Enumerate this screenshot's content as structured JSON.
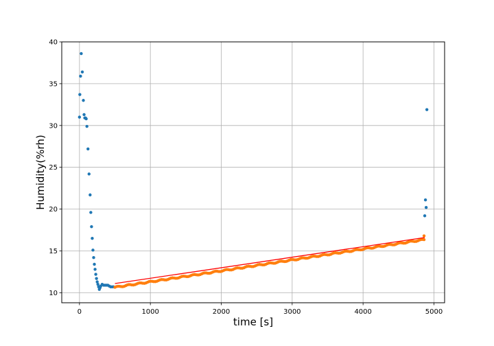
{
  "chart_data": {
    "type": "scatter",
    "title": "",
    "xlabel": "time [s]",
    "ylabel": "Humidity(%rh)",
    "xlim": [
      -250,
      5150
    ],
    "ylim": [
      8.8,
      40
    ],
    "xticks": [
      0,
      1000,
      2000,
      3000,
      4000,
      5000
    ],
    "xtick_labels": [
      "0",
      "1000",
      "2000",
      "3000",
      "4000",
      "5000"
    ],
    "yticks": [
      10,
      15,
      20,
      25,
      30,
      35,
      40
    ],
    "ytick_labels": [
      "10",
      "15",
      "20",
      "25",
      "30",
      "35",
      "40"
    ],
    "grid": true,
    "legend": "none",
    "series": [
      {
        "color": "#1f77b4",
        "marker": "dot",
        "points": [
          [
            0,
            31.0
          ],
          [
            5,
            33.7
          ],
          [
            15,
            35.9
          ],
          [
            25,
            38.6
          ],
          [
            40,
            36.4
          ],
          [
            55,
            33.0
          ],
          [
            65,
            31.3
          ],
          [
            75,
            30.9
          ],
          [
            85,
            30.9
          ],
          [
            95,
            30.8
          ],
          [
            105,
            29.9
          ],
          [
            120,
            27.2
          ],
          [
            135,
            24.2
          ],
          [
            150,
            21.7
          ],
          [
            160,
            19.6
          ],
          [
            170,
            17.9
          ],
          [
            180,
            16.5
          ],
          [
            190,
            15.1
          ],
          [
            200,
            14.2
          ],
          [
            210,
            13.4
          ],
          [
            220,
            12.8
          ],
          [
            230,
            12.2
          ],
          [
            240,
            11.7
          ],
          [
            250,
            11.3
          ],
          [
            260,
            11.0
          ],
          [
            270,
            10.7
          ],
          [
            280,
            10.4
          ],
          [
            290,
            10.6
          ],
          [
            300,
            10.8
          ],
          [
            320,
            11.0
          ],
          [
            340,
            10.9
          ],
          [
            360,
            10.9
          ],
          [
            380,
            10.9
          ],
          [
            400,
            10.9
          ],
          [
            420,
            10.8
          ],
          [
            440,
            10.7
          ],
          [
            460,
            10.7
          ],
          [
            480,
            10.7
          ],
          [
            4870,
            19.2
          ],
          [
            4880,
            21.1
          ],
          [
            4890,
            20.2
          ],
          [
            4900,
            31.9
          ]
        ]
      },
      {
        "color": "#ff7f0e",
        "marker": "dot",
        "x_start": 500,
        "x_end": 4860,
        "y_start": 10.65,
        "y_end": 16.35,
        "n": 200,
        "extra_points": [
          [
            4860,
            16.8
          ]
        ]
      },
      {
        "color": "#ff0000",
        "marker": "line",
        "points": [
          [
            500,
            11.1
          ],
          [
            4870,
            16.6
          ]
        ]
      }
    ]
  }
}
